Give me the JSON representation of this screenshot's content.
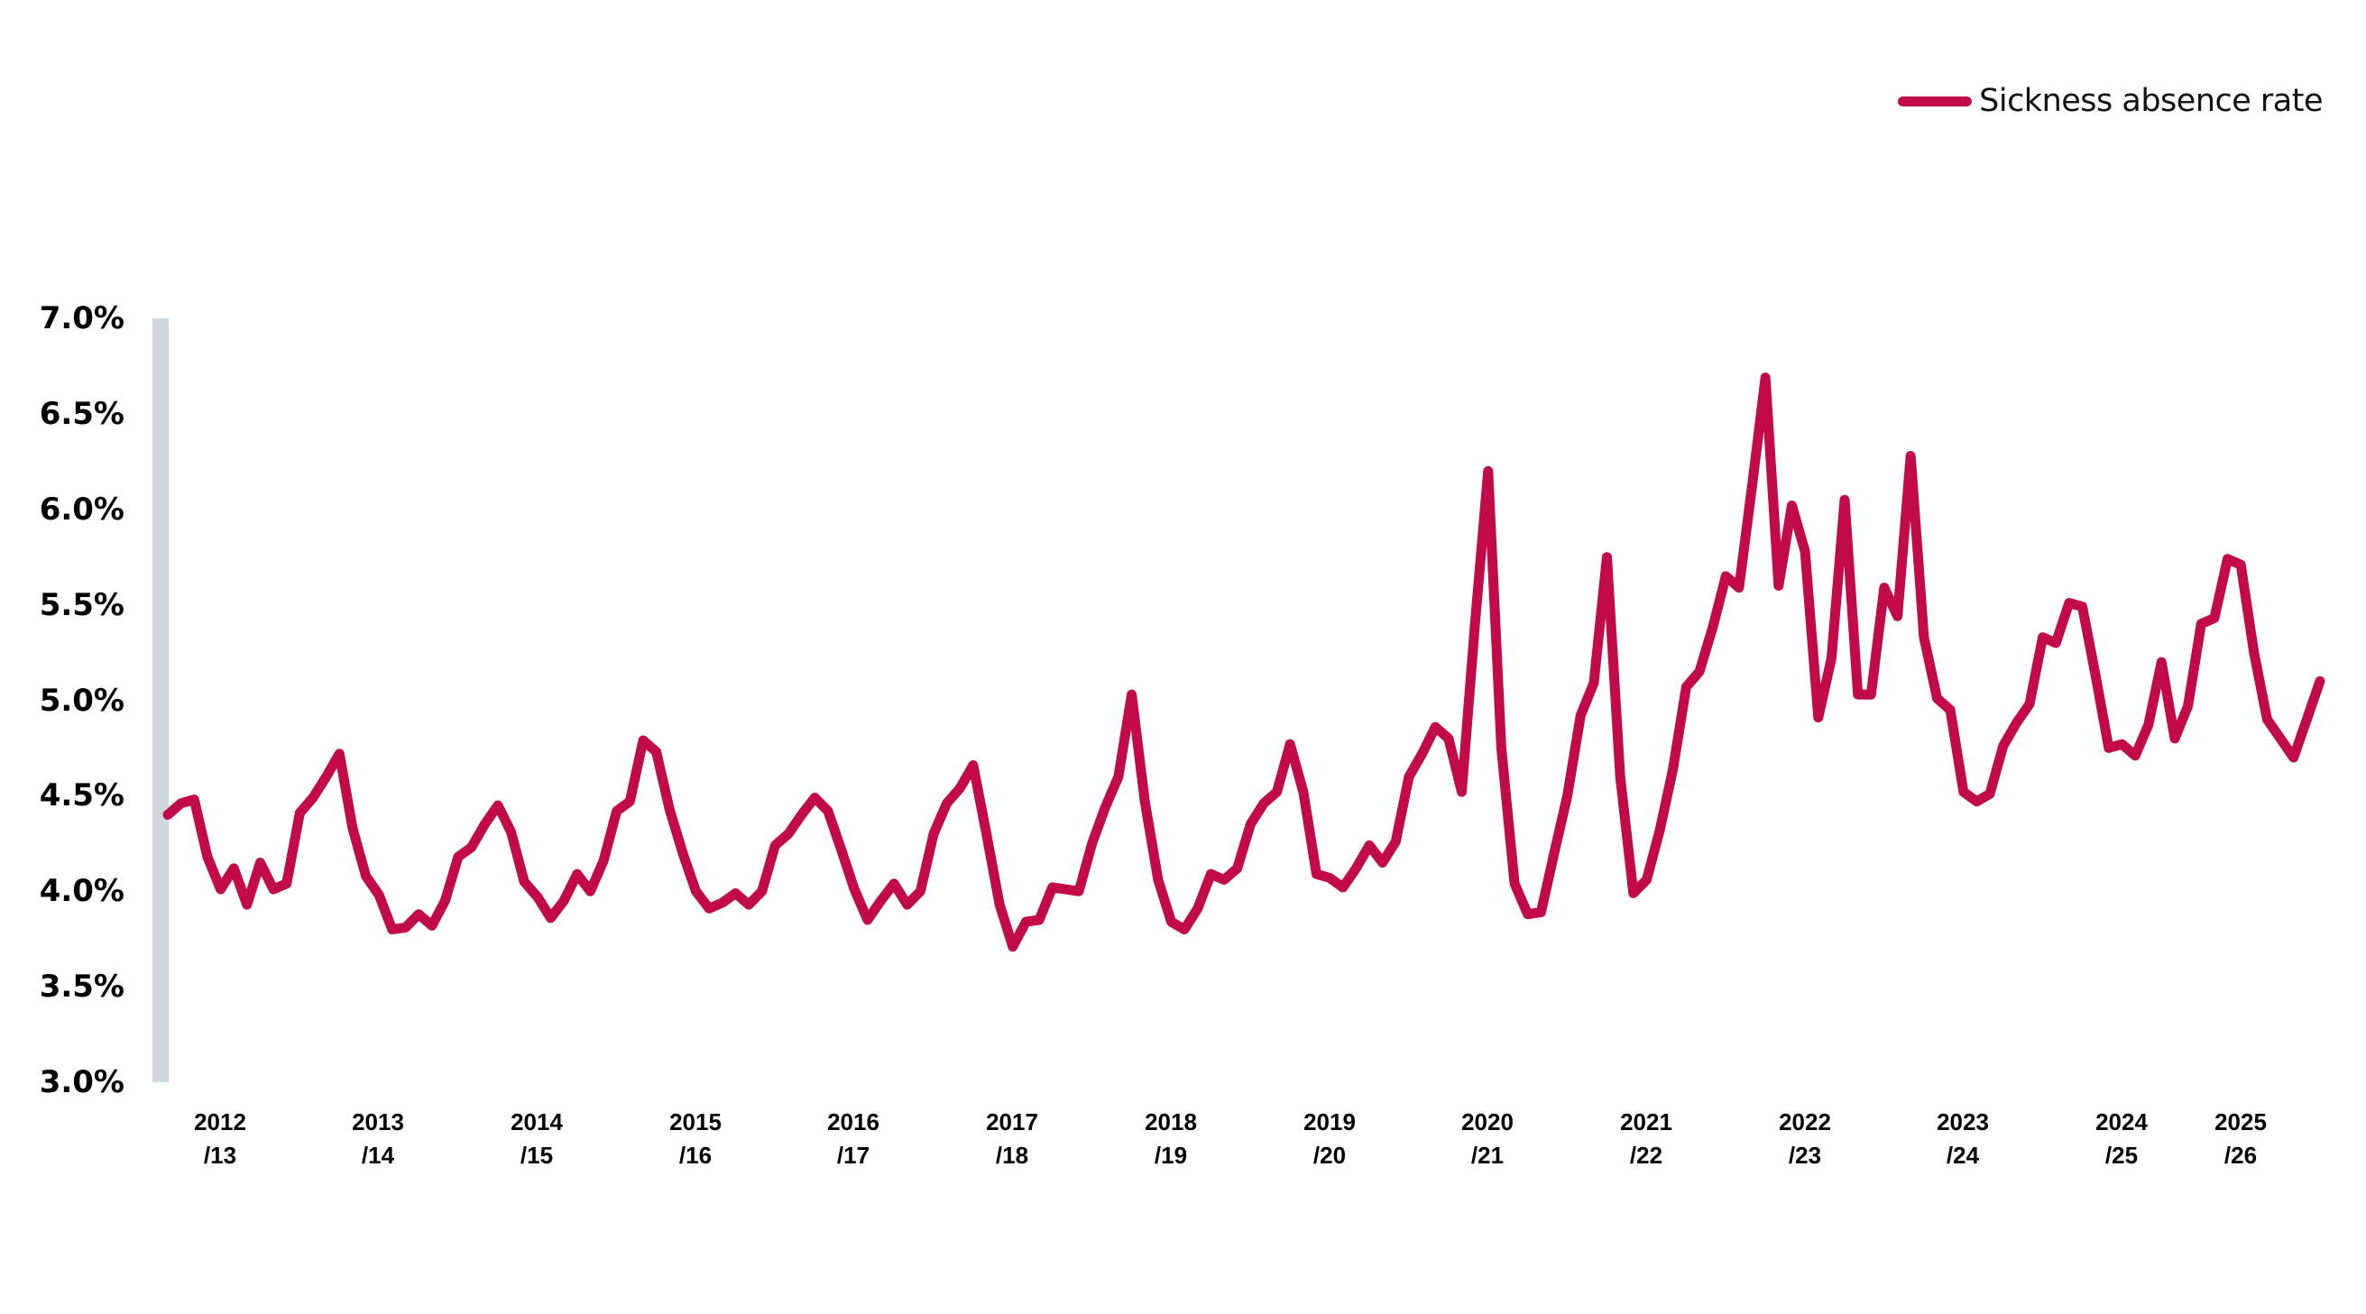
{
  "legend": {
    "label": "Sickness absence rate",
    "color": "#c20a48"
  },
  "axis": {
    "y_ticks": [
      "7.0%",
      "6.5%",
      "6.0%",
      "5.5%",
      "5.0%",
      "4.5%",
      "4.0%",
      "3.5%",
      "3.0%"
    ],
    "x_ticks": [
      {
        "line1": "2012",
        "line2": "/13"
      },
      {
        "line1": "2013",
        "line2": "/14"
      },
      {
        "line1": "2014",
        "line2": "/15"
      },
      {
        "line1": "2015",
        "line2": "/16"
      },
      {
        "line1": "2016",
        "line2": "/17"
      },
      {
        "line1": "2017",
        "line2": "/18"
      },
      {
        "line1": "2018",
        "line2": "/19"
      },
      {
        "line1": "2019",
        "line2": "/20"
      },
      {
        "line1": "2020",
        "line2": "/21"
      },
      {
        "line1": "2021",
        "line2": "/22"
      },
      {
        "line1": "2022",
        "line2": "/23"
      },
      {
        "line1": "2023",
        "line2": "/24"
      },
      {
        "line1": "2024",
        "line2": "/25"
      },
      {
        "line1": "2025",
        "line2": "/26"
      }
    ]
  },
  "chart_data": {
    "type": "line",
    "title": "",
    "xlabel": "",
    "ylabel": "",
    "ylim": [
      3.0,
      7.0
    ],
    "y_unit": "%",
    "grid": false,
    "legend_position": "top-right",
    "categories": [
      "2012/13",
      "2013/14",
      "2014/15",
      "2015/16",
      "2016/17",
      "2017/18",
      "2018/19",
      "2019/20",
      "2020/21",
      "2021/22",
      "2022/23",
      "2023/24",
      "2024/25",
      "2025/26"
    ],
    "series": [
      {
        "name": "Sickness absence rate",
        "color": "#c20a48",
        "frequency": "monthly",
        "values": [
          4.4,
          4.46,
          4.48,
          4.18,
          4.01,
          4.12,
          3.93,
          4.15,
          4.01,
          4.04,
          4.41,
          4.49,
          4.6,
          4.72,
          4.33,
          4.08,
          3.98,
          3.8,
          3.81,
          3.88,
          3.82,
          3.95,
          4.18,
          4.23,
          4.35,
          4.45,
          4.31,
          4.05,
          3.97,
          3.86,
          3.95,
          4.09,
          4.0,
          4.16,
          4.42,
          4.47,
          4.79,
          4.73,
          4.43,
          4.2,
          4.0,
          3.91,
          3.94,
          3.99,
          3.93,
          4.0,
          4.24,
          4.3,
          4.4,
          4.49,
          4.42,
          4.22,
          4.01,
          3.85,
          3.95,
          4.04,
          3.93,
          4.0,
          4.3,
          4.46,
          4.54,
          4.66,
          4.3,
          3.93,
          3.71,
          3.84,
          3.85,
          4.02,
          4.01,
          4.0,
          4.25,
          4.44,
          4.6,
          5.03,
          4.47,
          4.06,
          3.84,
          3.8,
          3.91,
          4.09,
          4.06,
          4.12,
          4.35,
          4.46,
          4.52,
          4.77,
          4.52,
          4.09,
          4.07,
          4.02,
          4.12,
          4.24,
          4.15,
          4.26,
          4.6,
          4.72,
          4.86,
          4.8,
          4.52,
          5.4,
          6.2,
          4.75,
          4.04,
          3.88,
          3.89,
          4.2,
          4.5,
          4.92,
          5.09,
          5.75,
          4.6,
          3.99,
          4.06,
          4.32,
          4.64,
          5.07,
          5.15,
          5.38,
          5.65,
          5.59,
          6.13,
          6.69,
          5.6,
          6.02,
          5.78,
          4.91,
          5.22,
          6.05,
          5.03,
          5.03,
          5.59,
          5.44,
          6.28,
          5.33,
          5.01,
          4.95,
          4.52,
          4.47,
          4.51,
          4.76,
          4.88,
          4.98,
          5.33,
          5.3,
          5.51,
          5.49,
          5.13,
          4.75,
          4.77,
          4.71,
          4.87,
          5.2,
          4.8,
          4.97,
          5.4,
          5.43,
          5.74,
          5.71,
          5.25,
          4.9,
          4.8,
          4.7,
          4.9,
          5.1
        ]
      }
    ]
  }
}
